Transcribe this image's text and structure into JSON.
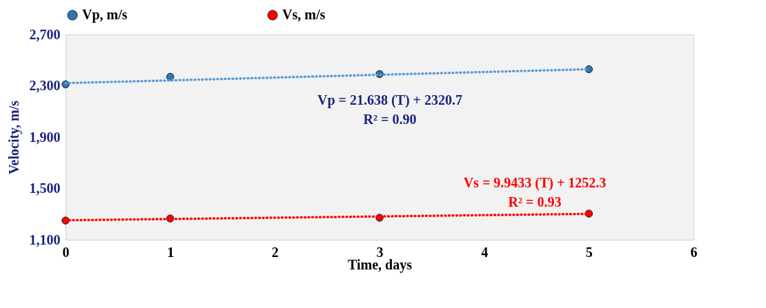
{
  "chart_data": {
    "type": "scatter",
    "xlabel": "Time, days",
    "ylabel": "Velocity, m/s",
    "x": [
      0,
      1,
      3,
      5
    ],
    "series": [
      {
        "name": "Vp, m/s",
        "color": "#2e75b6",
        "values": [
          2311,
          2370,
          2391,
          2429
        ]
      },
      {
        "name": "Vs, m/s",
        "color": "#ff0000",
        "values": [
          1250,
          1266,
          1272,
          1304
        ]
      },
      {
        "type": "line",
        "color": "#5b9bd5",
        "line_style": "dotted",
        "marker": "none",
        "values": [
          2321,
          2342,
          2386,
          2429
        ]
      },
      {
        "type": "line",
        "color": "#ff0000",
        "line_style": "dotted",
        "marker": "none",
        "values": [
          1252,
          1262,
          1282,
          1302
        ]
      }
    ],
    "annotations": [
      "Vp = 21.638 (T) + 2320.7",
      "R² = 0.90",
      "Vs = 9.9433 (T) + 1252.3",
      "R² = 0.93"
    ],
    "xlim": [
      0,
      6
    ],
    "xticks": [
      0,
      1,
      2,
      3,
      4,
      5,
      6
    ],
    "ylim": [
      1100,
      2700
    ],
    "yticks": [
      {
        "value": 1100,
        "label": "1,100"
      },
      {
        "value": 1500,
        "label": "1,500"
      },
      {
        "value": 1900,
        "label": "1,900"
      },
      {
        "value": 2300,
        "label": "2,300"
      },
      {
        "value": 2700,
        "label": "2,700"
      }
    ],
    "marker": "circle",
    "grid": false,
    "legend": "top"
  }
}
